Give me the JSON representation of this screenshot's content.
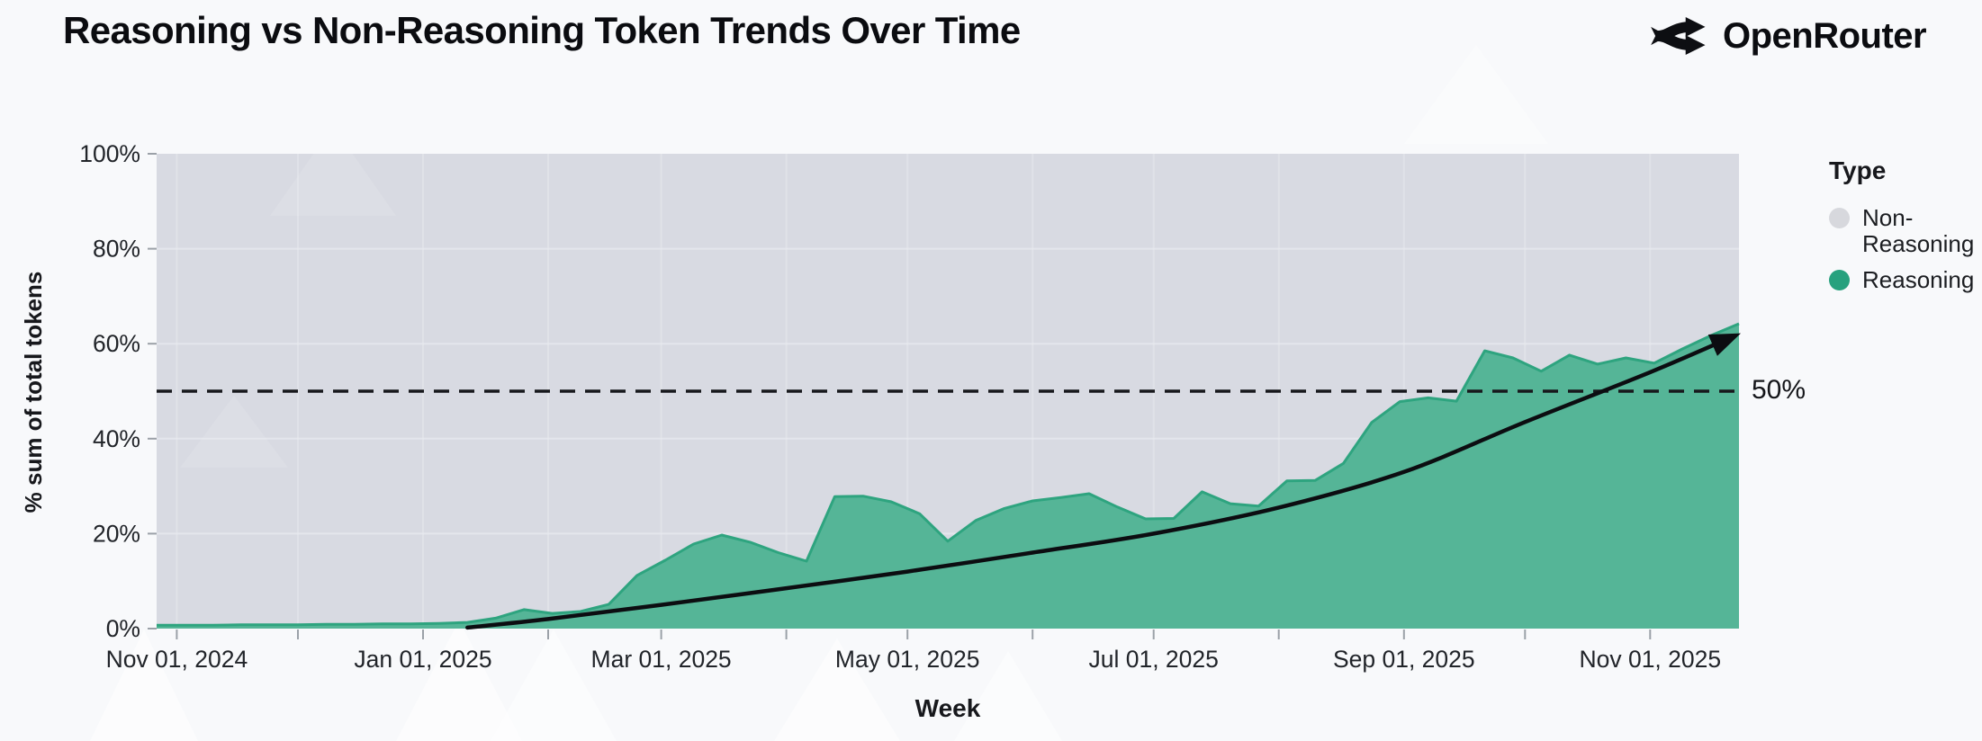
{
  "page": {
    "background": "#f8f9fb"
  },
  "header": {
    "title": "Reasoning vs Non-Reasoning Token Trends Over Time",
    "brand": {
      "name": "OpenRouter",
      "logo_icon": "openrouter-fork-arrows-icon"
    }
  },
  "chart_data": {
    "type": "area",
    "variant": "100%-stacked",
    "title": "Reasoning vs Non-Reasoning Token Trends Over Time",
    "xlabel": "Week",
    "ylabel": "% sum of total tokens",
    "ylim": [
      0,
      100
    ],
    "grid": true,
    "y_ticks": [
      {
        "value": 0,
        "label": "0%"
      },
      {
        "value": 20,
        "label": "20%"
      },
      {
        "value": 40,
        "label": "40%"
      },
      {
        "value": 60,
        "label": "60%"
      },
      {
        "value": 80,
        "label": "80%"
      },
      {
        "value": 100,
        "label": "100%"
      }
    ],
    "x_ticks": [
      {
        "date": "2024-11-01",
        "label": "Nov 01, 2024"
      },
      {
        "date": "2025-01-01",
        "label": "Jan 01, 2025"
      },
      {
        "date": "2025-03-01",
        "label": "Mar 01, 2025"
      },
      {
        "date": "2025-05-01",
        "label": "May 01, 2025"
      },
      {
        "date": "2025-07-01",
        "label": "Jul 01, 2025"
      },
      {
        "date": "2025-09-01",
        "label": "Sep 01, 2025"
      },
      {
        "date": "2025-11-01",
        "label": "Nov 01, 2025"
      }
    ],
    "x_minor_ticks": [
      "2024-11-01",
      "2024-12-01",
      "2025-01-01",
      "2025-02-01",
      "2025-03-01",
      "2025-04-01",
      "2025-05-01",
      "2025-06-01",
      "2025-07-01",
      "2025-08-01",
      "2025-09-01",
      "2025-10-01",
      "2025-11-01"
    ],
    "legend": {
      "title": "Type",
      "position": "right",
      "items": [
        {
          "label": "Non-Reasoning",
          "color": "#d7d8dd"
        },
        {
          "label": "Reasoning",
          "color": "#27a17e"
        }
      ]
    },
    "reference_line": {
      "value": 50,
      "label": "50%",
      "style": "dashed",
      "color": "#17181c"
    },
    "series": [
      {
        "name": "Reasoning",
        "color": "#55b597",
        "edge_color": "#2ea47f",
        "x": [
          "2024-10-27",
          "2024-11-03",
          "2024-11-10",
          "2024-11-17",
          "2024-11-24",
          "2024-12-01",
          "2024-12-08",
          "2024-12-15",
          "2024-12-22",
          "2024-12-29",
          "2025-01-05",
          "2025-01-12",
          "2025-01-19",
          "2025-01-26",
          "2025-02-02",
          "2025-02-09",
          "2025-02-16",
          "2025-02-23",
          "2025-03-02",
          "2025-03-09",
          "2025-03-16",
          "2025-03-23",
          "2025-03-30",
          "2025-04-06",
          "2025-04-13",
          "2025-04-20",
          "2025-04-27",
          "2025-05-04",
          "2025-05-11",
          "2025-05-18",
          "2025-05-25",
          "2025-06-01",
          "2025-06-08",
          "2025-06-15",
          "2025-06-22",
          "2025-06-29",
          "2025-07-06",
          "2025-07-13",
          "2025-07-20",
          "2025-07-27",
          "2025-08-03",
          "2025-08-10",
          "2025-08-17",
          "2025-08-24",
          "2025-08-31",
          "2025-09-07",
          "2025-09-14",
          "2025-09-21",
          "2025-09-28",
          "2025-10-05",
          "2025-10-12",
          "2025-10-19",
          "2025-10-26",
          "2025-11-02",
          "2025-11-09",
          "2025-11-16",
          "2025-11-23"
        ],
        "values": [
          0.7,
          0.7,
          0.7,
          0.8,
          0.8,
          0.8,
          0.9,
          0.9,
          1.0,
          1.0,
          1.1,
          1.3,
          2.2,
          4.0,
          3.2,
          3.6,
          5.1,
          11.2,
          14.4,
          17.8,
          19.7,
          18.2,
          16.0,
          14.2,
          27.8,
          27.9,
          26.7,
          24.2,
          18.4,
          22.8,
          25.3,
          26.9,
          27.6,
          28.4,
          25.6,
          23.1,
          23.2,
          28.8,
          26.3,
          25.8,
          31.1,
          31.2,
          34.8,
          43.4,
          47.8,
          48.6,
          47.9,
          58.5,
          57.0,
          54.2,
          57.6,
          55.7,
          57.0,
          55.9,
          58.9,
          61.7,
          64.2
        ]
      },
      {
        "name": "Non-Reasoning",
        "color": "#d8dae2",
        "values_note": "remainder to 100%"
      }
    ],
    "trend_arrow": {
      "color": "#0c0d11",
      "points": [
        {
          "date": "2025-01-12",
          "value": 0.2
        },
        {
          "date": "2025-02-01",
          "value": 2.0
        },
        {
          "date": "2025-03-01",
          "value": 5.0
        },
        {
          "date": "2025-04-01",
          "value": 8.5
        },
        {
          "date": "2025-05-01",
          "value": 12.0
        },
        {
          "date": "2025-06-01",
          "value": 16.0
        },
        {
          "date": "2025-07-01",
          "value": 20.0
        },
        {
          "date": "2025-08-01",
          "value": 25.5
        },
        {
          "date": "2025-09-01",
          "value": 33.0
        },
        {
          "date": "2025-10-01",
          "value": 43.5
        },
        {
          "date": "2025-11-01",
          "value": 54.0
        },
        {
          "date": "2025-11-21",
          "value": 61.3
        }
      ]
    }
  }
}
